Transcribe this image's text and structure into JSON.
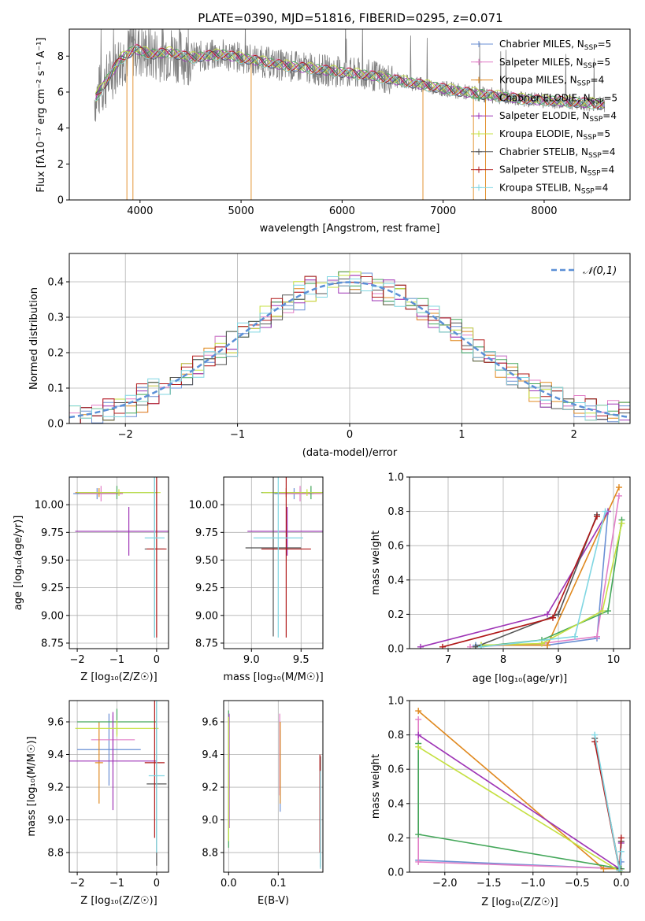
{
  "figure": {
    "title": "PLATE=0390, MJD=51816, FIBERID=0295, z=0.071"
  },
  "model_colors": [
    "#6a8fd4",
    "#e27fc7",
    "#e0891f",
    "#44a75a",
    "#9e34b6",
    "#c5e041",
    "#555555",
    "#b01818",
    "#7fd6e2"
  ],
  "models": [
    {
      "name": "Chabrier MILES",
      "nssp": "5"
    },
    {
      "name": "Salpeter MILES",
      "nssp": "5"
    },
    {
      "name": "Kroupa MILES",
      "nssp": "4"
    },
    {
      "name": "Chabrier ELODIE",
      "nssp": "5"
    },
    {
      "name": "Salpeter ELODIE",
      "nssp": "4"
    },
    {
      "name": "Kroupa ELODIE",
      "nssp": "5"
    },
    {
      "name": "Chabrier STELIB",
      "nssp": "4"
    },
    {
      "name": "Salpeter STELIB",
      "nssp": "4"
    },
    {
      "name": "Kroupa STELIB",
      "nssp": "4"
    }
  ],
  "chart_data": [
    {
      "id": "spectrum",
      "type": "line",
      "xlabel": "wavelength [Angstrom, rest frame]",
      "ylabel": "Flux [fλ10⁻¹⁷ erg cm⁻² s⁻¹ A⁻¹]",
      "xlim": [
        3300,
        8850
      ],
      "ylim": [
        0,
        9.5
      ],
      "xticks": [
        4000,
        5000,
        6000,
        7000,
        8000
      ],
      "yticks": [
        0,
        2,
        4,
        6,
        8
      ],
      "grid": false,
      "legend": "top-right",
      "data_color": "#808080",
      "data_knots": [
        [
          3550,
          5.6
        ],
        [
          3700,
          6.9
        ],
        [
          3800,
          7.8
        ],
        [
          3950,
          8.4
        ],
        [
          4100,
          8.1
        ],
        [
          4300,
          8.2
        ],
        [
          4500,
          7.9
        ],
        [
          4800,
          8.1
        ],
        [
          5100,
          7.8
        ],
        [
          5400,
          7.5
        ],
        [
          5700,
          7.3
        ],
        [
          6000,
          7.1
        ],
        [
          6300,
          6.9
        ],
        [
          6600,
          6.6
        ],
        [
          6900,
          6.3
        ],
        [
          7200,
          6.0
        ],
        [
          7500,
          5.8
        ],
        [
          7800,
          5.6
        ],
        [
          8100,
          5.5
        ],
        [
          8400,
          5.4
        ],
        [
          8600,
          5.3
        ]
      ],
      "model_offsets": [
        0.0,
        0.05,
        -0.05,
        0.02,
        -0.02,
        0.08,
        -0.04,
        0.03,
        -0.06
      ]
    },
    {
      "id": "residuals",
      "type": "histogram",
      "xlabel": "(data-model)/error",
      "ylabel": "Normed distribution",
      "xlim": [
        -2.5,
        2.5
      ],
      "ylim": [
        0,
        0.48
      ],
      "xticks": [
        -2,
        -1,
        0,
        1,
        2
      ],
      "yticks": [
        0.0,
        0.1,
        0.2,
        0.3,
        0.4
      ],
      "grid": true,
      "legend": "top-right",
      "reference_label": "𝒩(0,1)",
      "bin_width": 0.1,
      "deviations": [
        0.02,
        -0.01,
        0.03,
        -0.02,
        0.0,
        0.04,
        -0.03,
        0.01,
        -0.01,
        0.02,
        0.03,
        -0.02,
        0.01,
        -0.04,
        0.02,
        0.0,
        -0.01,
        0.03,
        -0.02,
        0.01,
        0.04,
        -0.03,
        0.02,
        -0.01,
        0.0,
        0.02,
        -0.03,
        0.01,
        0.03,
        -0.02,
        0.01,
        -0.01,
        0.02,
        0.0,
        -0.02,
        0.03,
        -0.01,
        0.01,
        -0.03,
        0.02,
        0.0,
        -0.01,
        0.02,
        -0.02,
        0.01,
        0.03,
        -0.01,
        0.0,
        0.02,
        -0.03
      ]
    },
    {
      "id": "age_vs_Z",
      "type": "errorbar",
      "xlabel": "Z [log₁₀(Z/Z☉)]",
      "ylabel": "age  [log₁₀(age/yr)]",
      "xlim": [
        -2.2,
        0.3
      ],
      "ylim": [
        8.7,
        10.25
      ],
      "xticks": [
        -2,
        -1,
        0
      ],
      "yticks": [
        8.75,
        9.0,
        9.25,
        9.5,
        9.75,
        10.0
      ],
      "grid": true,
      "points": [
        {
          "x": -1.5,
          "xerr": 0.6,
          "y": 10.1,
          "yerr": 0.05
        },
        {
          "x": -1.4,
          "xerr": 0.55,
          "y": 10.1,
          "yerr": 0.07
        },
        {
          "x": -1.45,
          "xerr": 0.6,
          "y": 10.11,
          "yerr": 0.04
        },
        {
          "x": -1.0,
          "xerr": 1.0,
          "y": 10.11,
          "yerr": 0.06
        },
        {
          "x": -0.7,
          "xerr": 1.35,
          "y": 9.76,
          "yerr": 0.22
        },
        {
          "x": -0.95,
          "xerr": 1.05,
          "y": 10.11,
          "yerr": 0.03
        },
        {
          "x": -0.05,
          "xerr": 0.25,
          "y": 9.6,
          "yerr": 0.8
        },
        {
          "x": 0.0,
          "xerr": 0.25,
          "y": 9.6,
          "yerr": 0.8
        },
        {
          "x": -0.05,
          "xerr": 0.25,
          "y": 9.7,
          "yerr": 0.9
        }
      ]
    },
    {
      "id": "age_vs_mass",
      "type": "errorbar",
      "xlabel": "mass [log₁₀(M/M☉)]",
      "ylabel": "",
      "xlim": [
        8.72,
        9.72
      ],
      "ylim": [
        8.7,
        10.25
      ],
      "xticks": [
        9.0,
        9.5
      ],
      "yticks": [
        8.75,
        9.0,
        9.25,
        9.5,
        9.75,
        10.0
      ],
      "grid": true,
      "points": [
        {
          "x": 9.43,
          "xerr": 0.2,
          "y": 10.1,
          "yerr": 0.05
        },
        {
          "x": 9.49,
          "xerr": 0.22,
          "y": 10.1,
          "yerr": 0.07
        },
        {
          "x": 9.35,
          "xerr": 0.25,
          "y": 10.11,
          "yerr": 0.04
        },
        {
          "x": 9.6,
          "xerr": 0.5,
          "y": 10.11,
          "yerr": 0.06
        },
        {
          "x": 9.36,
          "xerr": 0.4,
          "y": 9.76,
          "yerr": 0.22
        },
        {
          "x": 9.56,
          "xerr": 0.45,
          "y": 10.11,
          "yerr": 0.03
        },
        {
          "x": 9.22,
          "xerr": 0.28,
          "y": 9.61,
          "yerr": 0.8
        },
        {
          "x": 9.35,
          "xerr": 0.25,
          "y": 9.6,
          "yerr": 0.8
        },
        {
          "x": 9.27,
          "xerr": 0.25,
          "y": 9.7,
          "yerr": 0.9
        }
      ]
    },
    {
      "id": "massweight_vs_age",
      "type": "line",
      "xlabel": "age  [log₁₀(age/yr)]",
      "ylabel": "mass weight",
      "xlim": [
        6.3,
        10.3
      ],
      "ylim": [
        0.0,
        1.0
      ],
      "xticks": [
        7,
        8,
        9,
        10
      ],
      "yticks": [
        0.0,
        0.2,
        0.4,
        0.6,
        0.8,
        1.0
      ],
      "grid": true,
      "series": [
        {
          "x": [
            7.5,
            8.8,
            9.7,
            9.9
          ],
          "y": [
            0.02,
            0.02,
            0.06,
            0.8
          ]
        },
        {
          "x": [
            7.4,
            8.7,
            9.7,
            10.1
          ],
          "y": [
            0.01,
            0.03,
            0.07,
            0.89
          ]
        },
        {
          "x": [
            7.6,
            8.8,
            10.1
          ],
          "y": [
            0.02,
            0.02,
            0.94
          ]
        },
        {
          "x": [
            7.5,
            8.7,
            9.9,
            10.15
          ],
          "y": [
            0.01,
            0.05,
            0.22,
            0.75
          ]
        },
        {
          "x": [
            6.5,
            8.8,
            9.9
          ],
          "y": [
            0.01,
            0.2,
            0.8
          ]
        },
        {
          "x": [
            7.6,
            8.7,
            9.8,
            10.15
          ],
          "y": [
            0.02,
            0.03,
            0.22,
            0.73
          ]
        },
        {
          "x": [
            7.5,
            9.0,
            9.7
          ],
          "y": [
            0.01,
            0.2,
            0.78
          ]
        },
        {
          "x": [
            6.9,
            8.9,
            9.7
          ],
          "y": [
            0.01,
            0.18,
            0.77
          ]
        },
        {
          "x": [
            7.6,
            9.3,
            9.85
          ],
          "y": [
            0.01,
            0.07,
            0.8
          ]
        }
      ]
    },
    {
      "id": "mass_vs_Z",
      "type": "errorbar",
      "xlabel": "Z [log₁₀(Z/Z☉)]",
      "ylabel": "mass [log₁₀(M/M☉)]",
      "xlim": [
        -2.2,
        0.3
      ],
      "ylim": [
        8.68,
        9.73
      ],
      "xticks": [
        -2,
        -1,
        0
      ],
      "yticks": [
        8.8,
        9.0,
        9.2,
        9.4,
        9.6
      ],
      "grid": true,
      "points": [
        {
          "x": -1.2,
          "xerr": 0.8,
          "y": 9.43,
          "yerr": 0.22
        },
        {
          "x": -1.1,
          "xerr": 0.55,
          "y": 9.49,
          "yerr": 0.15
        },
        {
          "x": -1.45,
          "xerr": 0.1,
          "y": 9.35,
          "yerr": 0.25
        },
        {
          "x": -1.0,
          "xerr": 1.0,
          "y": 9.6,
          "yerr": 0.08
        },
        {
          "x": -1.1,
          "xerr": 1.1,
          "y": 9.36,
          "yerr": 0.3
        },
        {
          "x": -1.0,
          "xerr": 1.05,
          "y": 9.56,
          "yerr": 0.05
        },
        {
          "x": 0.0,
          "xerr": 0.25,
          "y": 9.22,
          "yerr": 0.5
        },
        {
          "x": -0.05,
          "xerr": 0.25,
          "y": 9.35,
          "yerr": 0.46
        },
        {
          "x": 0.0,
          "xerr": 0.2,
          "y": 9.27,
          "yerr": 0.47
        }
      ]
    },
    {
      "id": "mass_vs_ebv",
      "type": "errorbar",
      "xlabel": "E(B-V)",
      "ylabel": "",
      "xlim": [
        -0.01,
        0.19
      ],
      "ylim": [
        8.68,
        9.73
      ],
      "xticks": [
        0.0,
        0.1
      ],
      "yticks": [
        8.8,
        9.0,
        9.2,
        9.4,
        9.6
      ],
      "grid": true,
      "points": [
        {
          "x": 0.104,
          "xerr": 0,
          "y": 9.3,
          "yerr": 0.25
        },
        {
          "x": 0.103,
          "xerr": 0,
          "y": 9.4,
          "yerr": 0.25
        },
        {
          "x": 0.104,
          "xerr": 0,
          "y": 9.35,
          "yerr": 0.25
        },
        {
          "x": 0.0,
          "xerr": 0,
          "y": 9.25,
          "yerr": 0.42
        },
        {
          "x": 0.001,
          "xerr": 0,
          "y": 9.3,
          "yerr": 0.35
        },
        {
          "x": 0.0,
          "xerr": 0,
          "y": 9.25,
          "yerr": 0.38
        },
        {
          "x": 0.185,
          "xerr": 0,
          "y": 9.05,
          "yerr": 0.34
        },
        {
          "x": 0.184,
          "xerr": 0,
          "y": 9.1,
          "yerr": 0.3
        },
        {
          "x": 0.185,
          "xerr": 0,
          "y": 9.0,
          "yerr": 0.3
        }
      ]
    },
    {
      "id": "massweight_vs_Z",
      "type": "line",
      "xlabel": "Z [log₁₀(Z/Z☉)]",
      "ylabel": "mass weight",
      "xlim": [
        -2.4,
        0.1
      ],
      "ylim": [
        0.0,
        1.0
      ],
      "xticks": [
        -2.0,
        -1.5,
        -1.0,
        -0.5,
        0.0
      ],
      "yticks": [
        0.0,
        0.2,
        0.4,
        0.6,
        0.8,
        1.0
      ],
      "grid": true,
      "series": [
        {
          "x": [
            -2.3,
            -0.02,
            0.0
          ],
          "y": [
            0.07,
            0.02,
            0.06
          ]
        },
        {
          "x": [
            -2.3,
            -2.3,
            0.0
          ],
          "y": [
            0.89,
            0.06,
            0.02
          ]
        },
        {
          "x": [
            -2.3,
            -0.2,
            0.0
          ],
          "y": [
            0.94,
            0.02,
            0.02
          ]
        },
        {
          "x": [
            -2.3,
            -2.3,
            0.0
          ],
          "y": [
            0.75,
            0.22,
            0.02
          ]
        },
        {
          "x": [
            -2.3,
            -0.02,
            0.0
          ],
          "y": [
            0.8,
            0.02,
            0.17
          ]
        },
        {
          "x": [
            -2.3,
            0.0
          ],
          "y": [
            0.73,
            0.0
          ]
        },
        {
          "x": [
            -0.3,
            -0.02,
            0.0
          ],
          "y": [
            0.78,
            0.02,
            0.18
          ]
        },
        {
          "x": [
            -0.3,
            -0.02,
            0.0
          ],
          "y": [
            0.76,
            0.01,
            0.2
          ]
        },
        {
          "x": [
            -0.3,
            -0.02,
            0.0
          ],
          "y": [
            0.8,
            0.01,
            0.12
          ]
        }
      ]
    }
  ]
}
